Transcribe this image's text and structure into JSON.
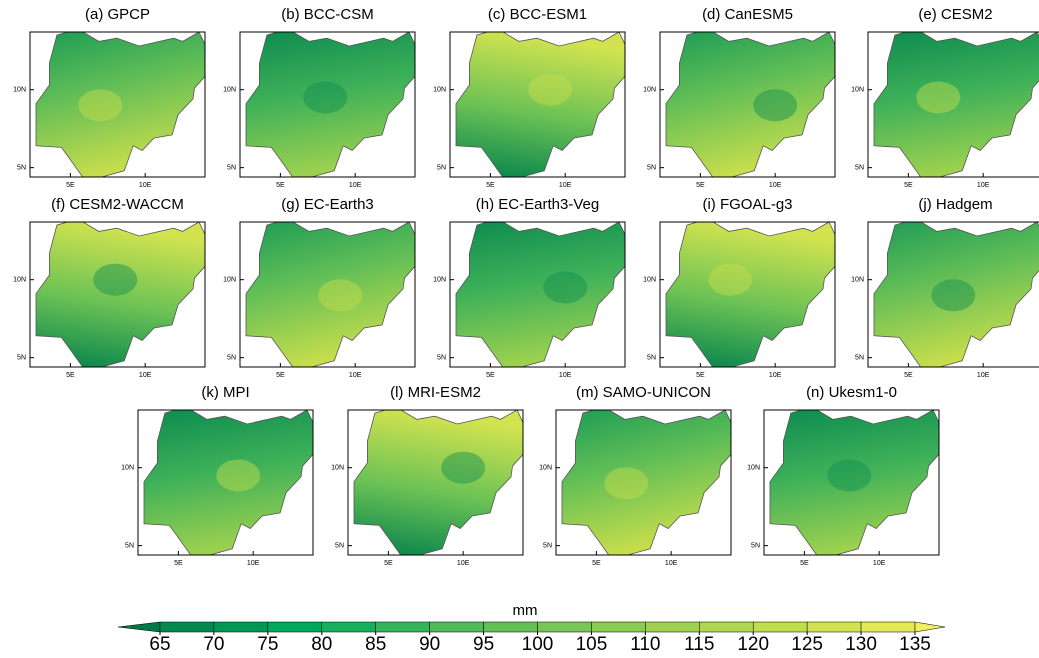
{
  "figure": {
    "panels": [
      {
        "title": "(a) GPCP"
      },
      {
        "title": "(b) BCC-CSM"
      },
      {
        "title": "(c) BCC-ESM1"
      },
      {
        "title": "(d) CanESM5"
      },
      {
        "title": "(e) CESM2"
      },
      {
        "title": "(f) CESM2-WACCM"
      },
      {
        "title": "(g) EC-Earth3"
      },
      {
        "title": "(h) EC-Earth3-Veg"
      },
      {
        "title": "(i) FGOAL-g3"
      },
      {
        "title": "(j) Hadgem"
      },
      {
        "title": "(k) MPI"
      },
      {
        "title": "(l) MRI-ESM2"
      },
      {
        "title": "(m) SAMO-UNICON"
      },
      {
        "title": "(n) Ukesm1-0"
      }
    ],
    "xlim": [
      2.3,
      14
    ],
    "ylim": [
      4.4,
      13.7
    ],
    "xticks": [
      {
        "value": 5,
        "label": "5E"
      },
      {
        "value": 10,
        "label": "10E"
      }
    ],
    "yticks": [
      {
        "value": 5,
        "label": "5N"
      },
      {
        "value": 10,
        "label": "10N"
      }
    ],
    "colorbar": {
      "unit": "mm",
      "ticks": [
        65,
        70,
        75,
        80,
        85,
        90,
        95,
        100,
        105,
        110,
        115,
        120,
        125,
        130,
        135
      ],
      "colors": [
        "#00794a",
        "#008a4f",
        "#009954",
        "#00a85a",
        "#14b05c",
        "#35b55a",
        "#4fba58",
        "#64c056",
        "#78c653",
        "#8acb51",
        "#9dd14f",
        "#afd74d",
        "#c1dd4c",
        "#d2e34f",
        "#e2e955",
        "#f0ef5e"
      ]
    }
  }
}
